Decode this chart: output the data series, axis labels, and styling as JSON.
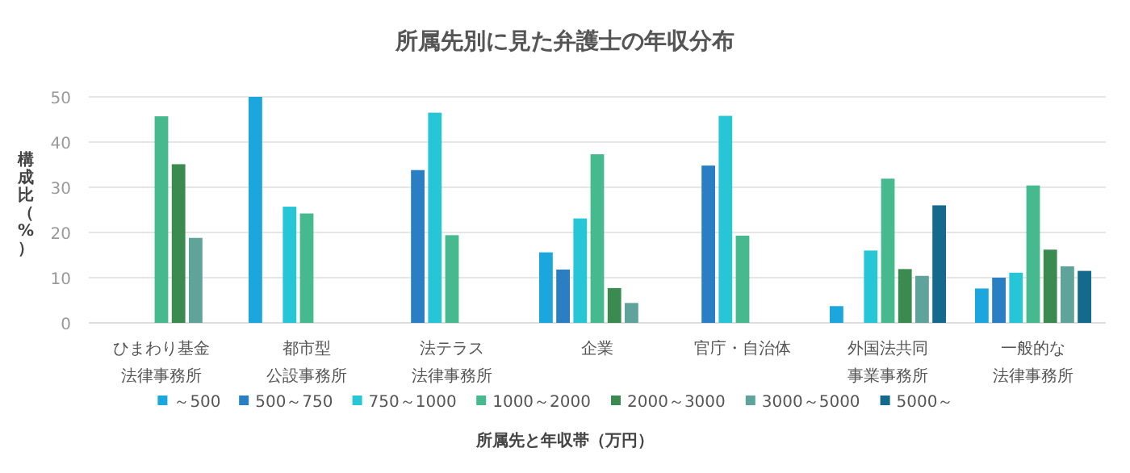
{
  "chart_data": {
    "type": "bar",
    "title": "所属先別に見た弁護士の年収分布",
    "xlabel": "所属先と年収帯（万円）",
    "ylabel": "構成比（%）",
    "categories": [
      "ひまわり基金法律事務所",
      "都市型公設事務所",
      "法テラス法律事務所",
      "企業",
      "官庁・自治体",
      "外国法共同事業事務所",
      "一般的な法律事務所"
    ],
    "series": [
      {
        "name": "～500",
        "color": "#1ba6de",
        "values": [
          null,
          50,
          null,
          15.6,
          null,
          3.7,
          7.6
        ]
      },
      {
        "name": "500～750",
        "color": "#2a7fc4",
        "values": [
          null,
          null,
          33.8,
          11.8,
          34.8,
          null,
          10
        ]
      },
      {
        "name": "750～1000",
        "color": "#26c6d6",
        "values": [
          null,
          25.7,
          46.5,
          23.1,
          45.8,
          16,
          11.1
        ]
      },
      {
        "name": "1000～2000",
        "color": "#46b98f",
        "values": [
          45.7,
          24.2,
          19.4,
          37.3,
          19.3,
          31.9,
          30.4
        ]
      },
      {
        "name": "2000～3000",
        "color": "#3b8a50",
        "values": [
          35.1,
          null,
          null,
          7.7,
          null,
          11.9,
          16.2
        ]
      },
      {
        "name": "3000～5000",
        "color": "#5fa39b",
        "values": [
          18.8,
          null,
          null,
          4.4,
          null,
          10.4,
          12.5
        ]
      },
      {
        "name": "5000～",
        "color": "#146a8c",
        "values": [
          null,
          null,
          null,
          null,
          null,
          26,
          11.5
        ]
      }
    ],
    "ylim": [
      0,
      50
    ],
    "yticks": [
      0,
      10,
      20,
      30,
      40,
      50
    ],
    "grid": "y",
    "legend": "bottom"
  }
}
